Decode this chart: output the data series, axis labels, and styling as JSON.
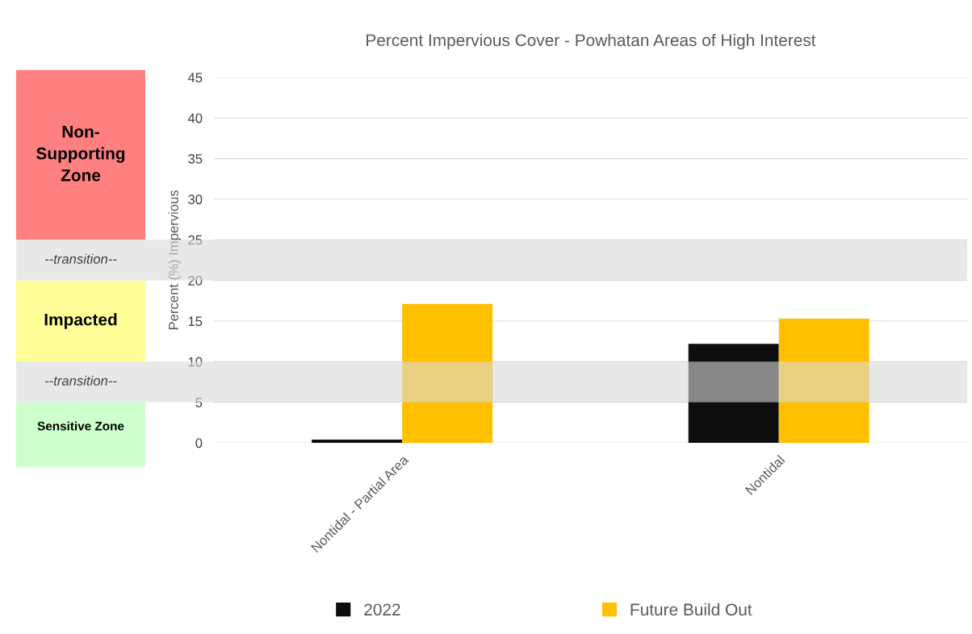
{
  "chart_data": {
    "type": "bar",
    "title": "Percent Impervious Cover - Powhatan Areas of High Interest",
    "ylabel": "Percent (%) Impervious",
    "categories": [
      "Nontidal - Partial Area",
      "Nontidal"
    ],
    "series": [
      {
        "name": "2022",
        "color": "#0d0d0d",
        "values": [
          0.4,
          12.2
        ]
      },
      {
        "name": "Future Build Out",
        "color": "#ffc000",
        "values": [
          17.1,
          15.3
        ]
      }
    ],
    "ylim": [
      0,
      45
    ],
    "yticks": [
      0,
      5,
      10,
      15,
      20,
      25,
      30,
      35,
      40,
      45
    ],
    "grid": "y",
    "legend": "bottom",
    "bands": [
      {
        "axis": "y",
        "from": 20,
        "to": 25,
        "label": "--transition--",
        "color": "#d9d9d9"
      },
      {
        "axis": "y",
        "from": 5,
        "to": 10,
        "label": "--transition--",
        "color": "#d9d9d9"
      }
    ],
    "annotations": [
      "Non-\nSupporting\nZone",
      "Impacted",
      "Sensitive Zone"
    ]
  }
}
